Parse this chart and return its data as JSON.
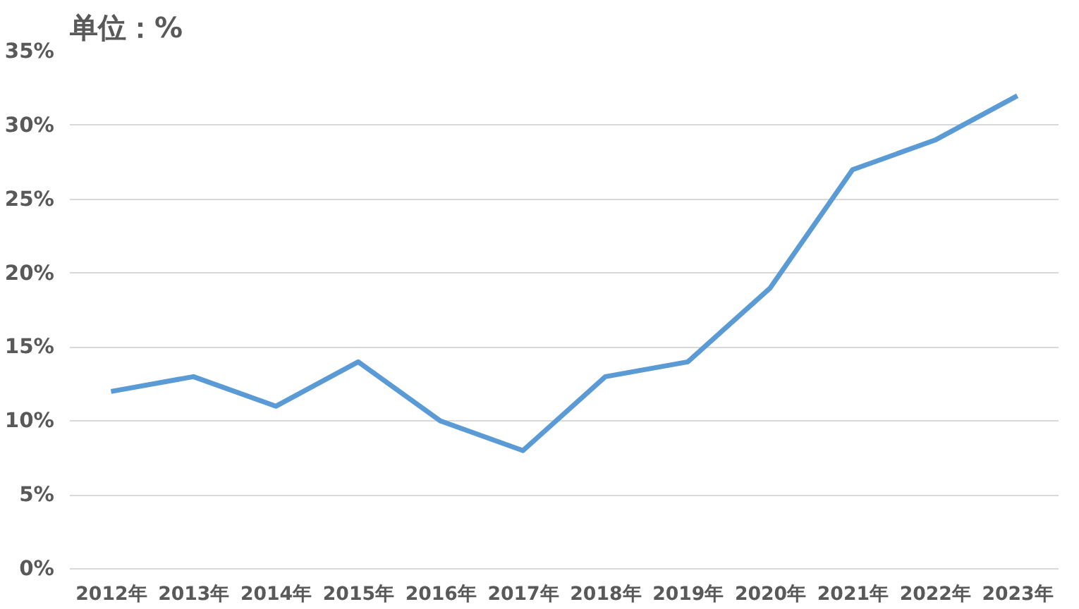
{
  "chart_data": {
    "type": "line",
    "ylabel": "单位：%",
    "categories": [
      "2012年",
      "2013年",
      "2014年",
      "2015年",
      "2016年",
      "2017年",
      "2018年",
      "2019年",
      "2020年",
      "2021年",
      "2022年",
      "2023年"
    ],
    "series": [
      {
        "color": "#5b9bd5",
        "values": [
          12,
          13,
          11,
          14,
          10,
          8,
          13,
          14,
          19,
          27,
          29,
          32
        ]
      }
    ],
    "ylim": [
      0,
      35
    ],
    "yticks": [
      {
        "value": 0,
        "label": "0%"
      },
      {
        "value": 5,
        "label": "5%"
      },
      {
        "value": 10,
        "label": "10%"
      },
      {
        "value": 15,
        "label": "15%"
      },
      {
        "value": 20,
        "label": "20%"
      },
      {
        "value": 25,
        "label": "25%"
      },
      {
        "value": 30,
        "label": "30%"
      },
      {
        "value": 35,
        "label": "35%"
      }
    ],
    "grid": "y",
    "marker": "none",
    "line_style": "solid"
  }
}
